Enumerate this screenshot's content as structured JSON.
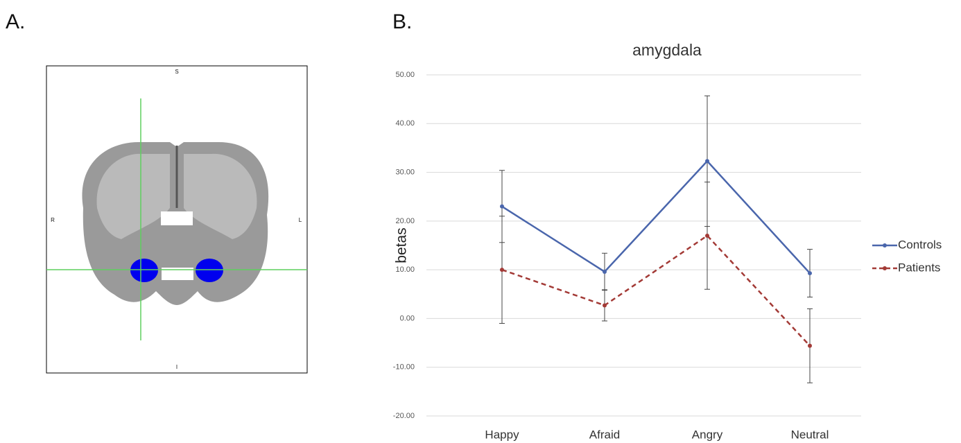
{
  "figure": {
    "panel_a_label": "A.",
    "panel_b_label": "B.",
    "orientation_labels": {
      "top": "S",
      "left": "R",
      "right": "L",
      "bottom": "I"
    }
  },
  "chart_data": {
    "type": "line",
    "title": "amygdala",
    "y_label": "betas",
    "categories": [
      "Happy",
      "Afraid",
      "Angry",
      "Neutral"
    ],
    "series": [
      {
        "name": "Controls",
        "color": "#4a66ac",
        "line_style": "solid",
        "values": [
          23,
          9.6,
          32.3,
          9.3
        ],
        "errors": [
          7.4,
          3.8,
          13.4,
          4.9
        ]
      },
      {
        "name": "Patients",
        "color": "#a33a36",
        "line_style": "dashed",
        "values": [
          10,
          2.7,
          17,
          -5.6
        ],
        "errors": [
          11,
          3.2,
          11,
          7.6
        ]
      }
    ],
    "ylim": [
      -20,
      50
    ],
    "yticks": [
      {
        "value": -20,
        "label": "-20.00"
      },
      {
        "value": -10,
        "label": "-10.00"
      },
      {
        "value": 0,
        "label": "0.00"
      },
      {
        "value": 10,
        "label": "10.00"
      },
      {
        "value": 20,
        "label": "20.00"
      },
      {
        "value": 30,
        "label": "30.00"
      },
      {
        "value": 40,
        "label": "40.00"
      },
      {
        "value": 50,
        "label": "50.00"
      }
    ],
    "grid": true,
    "legend": "right"
  }
}
